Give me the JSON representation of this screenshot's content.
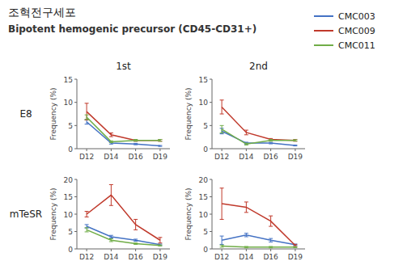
{
  "chart_data": [
    {
      "type": "line",
      "title": "조혁전구세포",
      "subtitle": "Bipotent hemogenic precursor (CD45-CD31+)",
      "annotations": [
        "1st",
        "2nd",
        "E8",
        "mTeSR"
      ],
      "legend": "upper right",
      "categories": [
        "D12",
        "D14",
        "D16",
        "D19"
      ],
      "y_label": "Frequency (%)",
      "ylim": [
        0,
        15
      ],
      "yticks": [
        0,
        5,
        10,
        15
      ],
      "series": [
        {
          "name": "CMC003",
          "color": "#4472C4",
          "values": [
            5.8,
            1.2,
            1.0,
            0.6
          ],
          "errors": [
            0.5,
            0.2,
            0.15,
            0.1
          ]
        },
        {
          "name": "CMC009",
          "color": "#C0392B",
          "values": [
            8.0,
            3.0,
            1.8,
            1.8
          ],
          "errors": [
            1.8,
            0.4,
            0.2,
            0.2
          ]
        },
        {
          "name": "CMC011",
          "color": "#70AD47",
          "values": [
            6.8,
            1.5,
            1.8,
            1.8
          ],
          "errors": [
            0.5,
            0.2,
            0.2,
            0.2
          ]
        }
      ]
    },
    {
      "type": "line",
      "categories": [
        "D12",
        "D14",
        "D16",
        "D19"
      ],
      "y_label": "Frequency (%)",
      "ylim": [
        0,
        15
      ],
      "yticks": [
        0,
        5,
        10,
        15
      ],
      "series": [
        {
          "name": "CMC003",
          "color": "#4472C4",
          "values": [
            3.8,
            1.2,
            1.2,
            0.7
          ],
          "errors": [
            0.6,
            0.2,
            0.15,
            0.1
          ]
        },
        {
          "name": "CMC009",
          "color": "#C0392B",
          "values": [
            9.0,
            3.5,
            2.0,
            1.8
          ],
          "errors": [
            1.5,
            0.5,
            0.2,
            0.2
          ]
        },
        {
          "name": "CMC011",
          "color": "#70AD47",
          "values": [
            4.2,
            1.0,
            1.8,
            1.8
          ],
          "errors": [
            0.8,
            0.2,
            0.2,
            0.15
          ]
        }
      ]
    },
    {
      "type": "line",
      "categories": [
        "D12",
        "D14",
        "D16",
        "D19"
      ],
      "y_label": "Frequency (%)",
      "ylim": [
        0,
        20
      ],
      "yticks": [
        0,
        5,
        10,
        15,
        20
      ],
      "series": [
        {
          "name": "CMC003",
          "color": "#4472C4",
          "values": [
            6.5,
            3.5,
            2.5,
            1.2
          ],
          "errors": [
            0.5,
            0.4,
            0.3,
            0.2
          ]
        },
        {
          "name": "CMC009",
          "color": "#C0392B",
          "values": [
            10.0,
            15.5,
            7.0,
            2.5
          ],
          "errors": [
            0.8,
            3.0,
            1.5,
            0.8
          ]
        },
        {
          "name": "CMC011",
          "color": "#70AD47",
          "values": [
            5.5,
            2.5,
            1.5,
            1.0
          ],
          "errors": [
            0.6,
            0.4,
            0.2,
            0.15
          ]
        }
      ]
    },
    {
      "type": "line",
      "categories": [
        "D12",
        "D14",
        "D16",
        "D19"
      ],
      "y_label": "Frequency (%)",
      "ylim": [
        0,
        20
      ],
      "yticks": [
        0,
        5,
        10,
        15,
        20
      ],
      "series": [
        {
          "name": "CMC003",
          "color": "#4472C4",
          "values": [
            2.5,
            4.0,
            2.5,
            1.2
          ],
          "errors": [
            1.2,
            0.5,
            0.5,
            0.2
          ]
        },
        {
          "name": "CMC009",
          "color": "#C0392B",
          "values": [
            13.0,
            12.0,
            8.0,
            1.0
          ],
          "errors": [
            4.5,
            1.5,
            1.5,
            0.3
          ]
        },
        {
          "name": "CMC011",
          "color": "#70AD47",
          "values": [
            0.8,
            0.5,
            0.5,
            0.5
          ],
          "errors": [
            0.3,
            0.2,
            0.2,
            0.15
          ]
        }
      ]
    }
  ]
}
